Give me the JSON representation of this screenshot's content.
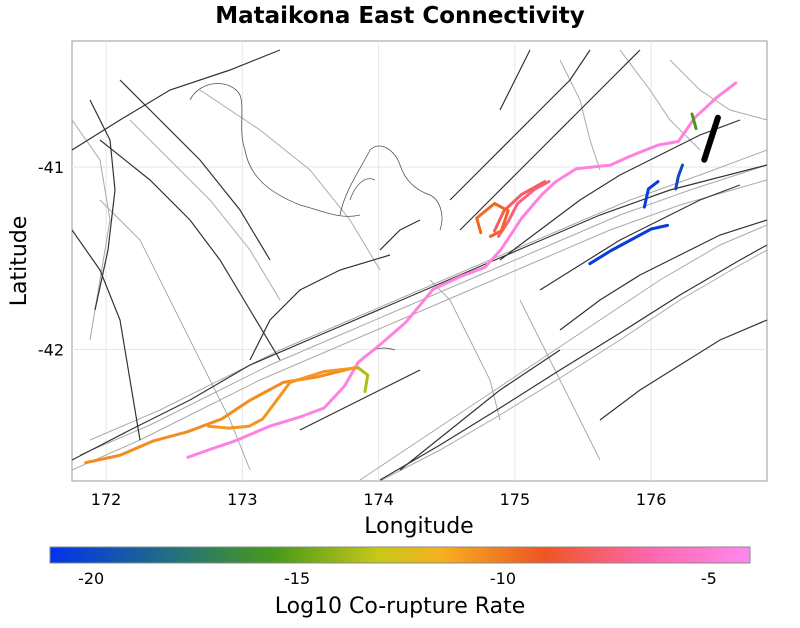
{
  "chart_data": {
    "type": "map",
    "title": "Mataikona East Connectivity",
    "xlabel": "Longitude",
    "ylabel": "Latitude",
    "xlim": [
      171.75,
      176.85
    ],
    "ylim": [
      -42.72,
      -40.31
    ],
    "xticks": [
      172,
      173,
      174,
      175,
      176
    ],
    "yticks": [
      -41,
      -42
    ],
    "colorbar": {
      "label": "Log10 Co-rupture Rate",
      "range": [
        -21,
        -4
      ],
      "ticks": [
        -20,
        -15,
        -10,
        -5
      ],
      "stops": [
        {
          "value": -21,
          "color": "#0033ee"
        },
        {
          "value": -17.5,
          "color": "#2a7a6a"
        },
        {
          "value": -15.5,
          "color": "#4a9a1a"
        },
        {
          "value": -13,
          "color": "#c8c817"
        },
        {
          "value": -11.5,
          "color": "#f7b020"
        },
        {
          "value": -9,
          "color": "#ee5522"
        },
        {
          "value": -6.5,
          "color": "#ff66aa"
        },
        {
          "value": -4,
          "color": "#ff88ee"
        }
      ]
    },
    "highlighted_faults": [
      {
        "name": "Mataikona East",
        "color": "#000000",
        "points": [
          [
            176.39,
            -40.96
          ],
          [
            176.49,
            -40.73
          ]
        ]
      },
      {
        "name": "pink-1",
        "log10_rate": -4.5,
        "points": [
          [
            176.62,
            -40.54
          ],
          [
            176.48,
            -40.62
          ],
          [
            176.32,
            -40.73
          ],
          [
            176.2,
            -40.86
          ],
          [
            176.05,
            -40.88
          ],
          [
            175.85,
            -40.94
          ],
          [
            175.7,
            -40.99
          ],
          [
            175.45,
            -41.01
          ],
          [
            175.3,
            -41.08
          ],
          [
            175.2,
            -41.15
          ],
          [
            175.05,
            -41.28
          ],
          [
            174.9,
            -41.45
          ],
          [
            174.78,
            -41.55
          ],
          [
            174.6,
            -41.6
          ],
          [
            174.4,
            -41.67
          ]
        ]
      },
      {
        "name": "pink-2",
        "log10_rate": -4.5,
        "points": [
          [
            174.4,
            -41.67
          ],
          [
            174.2,
            -41.85
          ],
          [
            174.0,
            -41.98
          ],
          [
            173.85,
            -42.07
          ],
          [
            173.75,
            -42.2
          ],
          [
            173.6,
            -42.32
          ],
          [
            173.42,
            -42.37
          ],
          [
            173.2,
            -42.42
          ],
          [
            172.95,
            -42.5
          ],
          [
            172.75,
            -42.55
          ],
          [
            172.6,
            -42.59
          ]
        ]
      },
      {
        "name": "red-1",
        "log10_rate": -7.2,
        "points": [
          [
            175.25,
            -41.08
          ],
          [
            175.15,
            -41.12
          ],
          [
            175.02,
            -41.2
          ],
          [
            174.95,
            -41.3
          ],
          [
            174.88,
            -41.38
          ]
        ]
      },
      {
        "name": "red-2",
        "log10_rate": -7.8,
        "points": [
          [
            174.85,
            -41.35
          ],
          [
            174.92,
            -41.24
          ],
          [
            175.05,
            -41.15
          ],
          [
            175.22,
            -41.08
          ]
        ]
      },
      {
        "name": "orange-1",
        "log10_rate": -9.5,
        "points": [
          [
            174.75,
            -41.36
          ],
          [
            174.72,
            -41.28
          ],
          [
            174.85,
            -41.2
          ],
          [
            174.95,
            -41.24
          ],
          [
            174.9,
            -41.35
          ],
          [
            174.82,
            -41.38
          ]
        ]
      },
      {
        "name": "orange-2",
        "log10_rate": -10.5,
        "points": [
          [
            173.82,
            -42.1
          ],
          [
            173.55,
            -42.15
          ],
          [
            173.3,
            -42.18
          ],
          [
            173.05,
            -42.28
          ],
          [
            172.85,
            -42.38
          ],
          [
            172.6,
            -42.45
          ],
          [
            172.35,
            -42.5
          ],
          [
            172.1,
            -42.58
          ],
          [
            171.85,
            -42.62
          ]
        ]
      },
      {
        "name": "orange-3",
        "log10_rate": -10.8,
        "points": [
          [
            173.85,
            -42.1
          ],
          [
            173.6,
            -42.12
          ],
          [
            173.35,
            -42.18
          ],
          [
            173.25,
            -42.28
          ],
          [
            173.15,
            -42.38
          ],
          [
            173.05,
            -42.42
          ],
          [
            172.9,
            -42.43
          ],
          [
            172.75,
            -42.42
          ]
        ]
      },
      {
        "name": "yellow-green",
        "log10_rate": -13.5,
        "points": [
          [
            173.85,
            -42.1
          ],
          [
            173.92,
            -42.14
          ],
          [
            173.9,
            -42.23
          ]
        ]
      },
      {
        "name": "green",
        "log10_rate": -15.5,
        "points": [
          [
            176.3,
            -40.71
          ],
          [
            176.33,
            -40.79
          ]
        ]
      },
      {
        "name": "blue-1",
        "log10_rate": -20.5,
        "points": [
          [
            176.12,
            -41.32
          ],
          [
            176.0,
            -41.34
          ],
          [
            175.85,
            -41.4
          ],
          [
            175.7,
            -41.46
          ],
          [
            175.55,
            -41.53
          ]
        ]
      },
      {
        "name": "blue-2",
        "log10_rate": -20.5,
        "points": [
          [
            176.05,
            -41.08
          ],
          [
            175.98,
            -41.12
          ],
          [
            175.95,
            -41.22
          ]
        ]
      },
      {
        "name": "blue-3",
        "log10_rate": -20.0,
        "points": [
          [
            176.23,
            -40.99
          ],
          [
            176.2,
            -41.05
          ],
          [
            176.18,
            -41.12
          ]
        ]
      }
    ]
  }
}
